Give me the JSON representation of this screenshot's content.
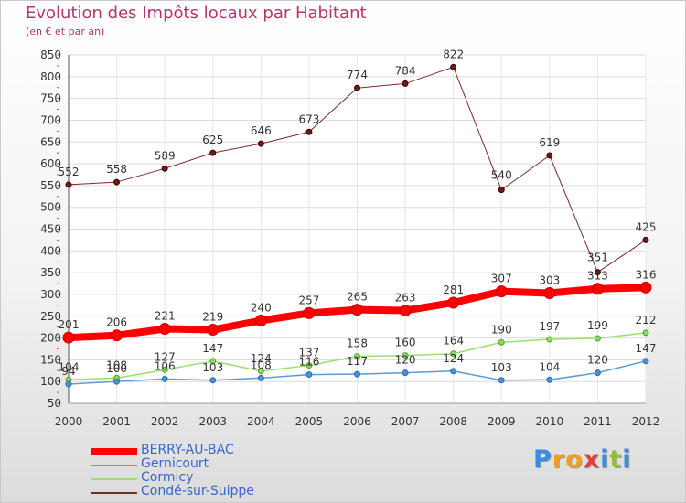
{
  "title": "Evolution des Impôts locaux par Habitant",
  "subtitle": "(en € et par an)",
  "brand": {
    "letters": [
      "P",
      "r",
      "o",
      "x",
      "i",
      "t",
      "i"
    ],
    "colors": [
      "#3a8de0",
      "#f0a020",
      "#f0a020",
      "#e04040",
      "#3a8de0",
      "#90c030",
      "#3a8de0"
    ]
  },
  "chart_data": {
    "type": "line",
    "x": [
      "2000",
      "2001",
      "2002",
      "2003",
      "2004",
      "2005",
      "2006",
      "2007",
      "2008",
      "2009",
      "2010",
      "2011",
      "2012"
    ],
    "ylim": [
      50,
      850
    ],
    "yticks": [
      50,
      100,
      150,
      200,
      250,
      300,
      350,
      400,
      450,
      500,
      550,
      600,
      650,
      700,
      750,
      800,
      850
    ],
    "grid": true,
    "legend_position": "bottom-left",
    "series": [
      {
        "name": "BERRY-AU-BAC",
        "color": "#ff0000",
        "width": 8,
        "marker": 6,
        "values": [
          201,
          206,
          221,
          219,
          240,
          257,
          265,
          263,
          281,
          307,
          303,
          313,
          316
        ],
        "labels": [
          "201",
          "206",
          "221",
          "219",
          "240",
          "257",
          "265",
          "263",
          "281",
          "307",
          "303",
          "313",
          "316"
        ]
      },
      {
        "name": "Gernicourt",
        "color": "#5b9bd5",
        "width": 1.5,
        "marker": 3,
        "values": [
          94,
          100,
          106,
          103,
          108,
          116,
          117,
          120,
          124,
          103,
          104,
          120,
          147
        ],
        "labels": [
          "94",
          "100",
          "106",
          "103",
          "108",
          "116",
          "117",
          "120",
          "124",
          "103",
          "104",
          "120",
          "147"
        ]
      },
      {
        "name": "Cormicy",
        "color": "#99dd77",
        "width": 1.5,
        "marker": 3,
        "values": [
          104,
          108,
          127,
          147,
          124,
          137,
          158,
          160,
          164,
          190,
          197,
          199,
          212
        ],
        "labels": [
          "104",
          "108",
          "127",
          "147",
          "124",
          "137",
          "158",
          "160",
          "164",
          "190",
          "197",
          "199",
          "212"
        ]
      },
      {
        "name": "Condé-sur-Suippe",
        "color": "#7a2a2a",
        "width": 1,
        "marker": 3,
        "values": [
          552,
          558,
          589,
          625,
          646,
          673,
          774,
          784,
          822,
          540,
          619,
          351,
          425
        ],
        "labels": [
          "552",
          "558",
          "589",
          "625",
          "646",
          "673",
          "774",
          "784",
          "822",
          "540",
          "619",
          "351",
          "425"
        ]
      }
    ]
  }
}
